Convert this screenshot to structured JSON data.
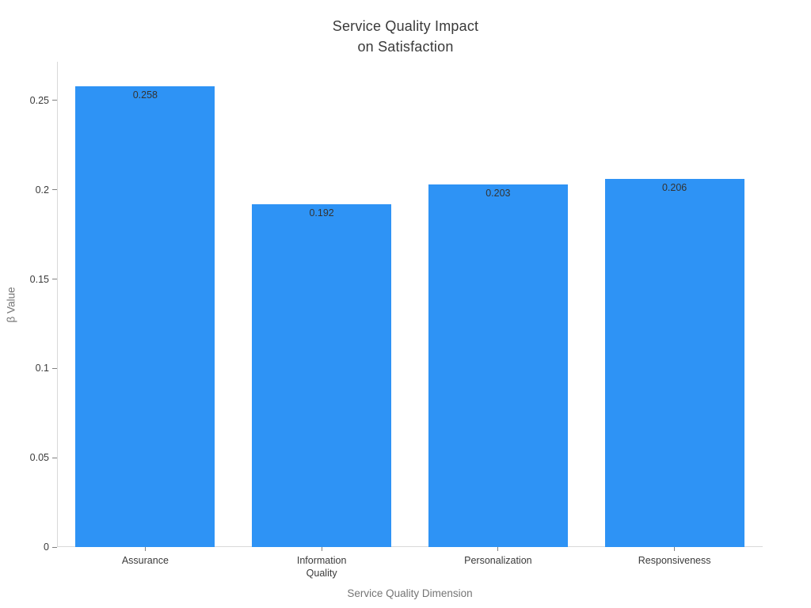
{
  "chart_data": {
    "type": "bar",
    "title": "Service Quality Impact\non Satisfaction",
    "categories": [
      "Assurance",
      "Information\nQuality",
      "Personalization",
      "Responsiveness"
    ],
    "values": [
      0.258,
      0.192,
      0.203,
      0.206
    ],
    "value_labels": [
      "0.258",
      "0.192",
      "0.203",
      "0.206"
    ],
    "xlabel": "Service Quality Dimension",
    "ylabel": "β Value",
    "yticks": [
      0,
      0.05,
      0.1,
      0.15,
      0.2,
      0.25
    ],
    "ytick_labels": [
      "0",
      "0.05",
      "0.1",
      "0.15",
      "0.2",
      "0.25"
    ],
    "ylim": [
      0,
      0.2717
    ],
    "grid": false,
    "legend": "none",
    "colors": {
      "bar": "#2e93f5",
      "title_text": "#3a3a3a",
      "tick_text": "#3a3a3a",
      "value_label_text": "#333333",
      "axis_title_text": "#757575",
      "spine": "#d9d9d9",
      "background": "#ffffff"
    }
  }
}
